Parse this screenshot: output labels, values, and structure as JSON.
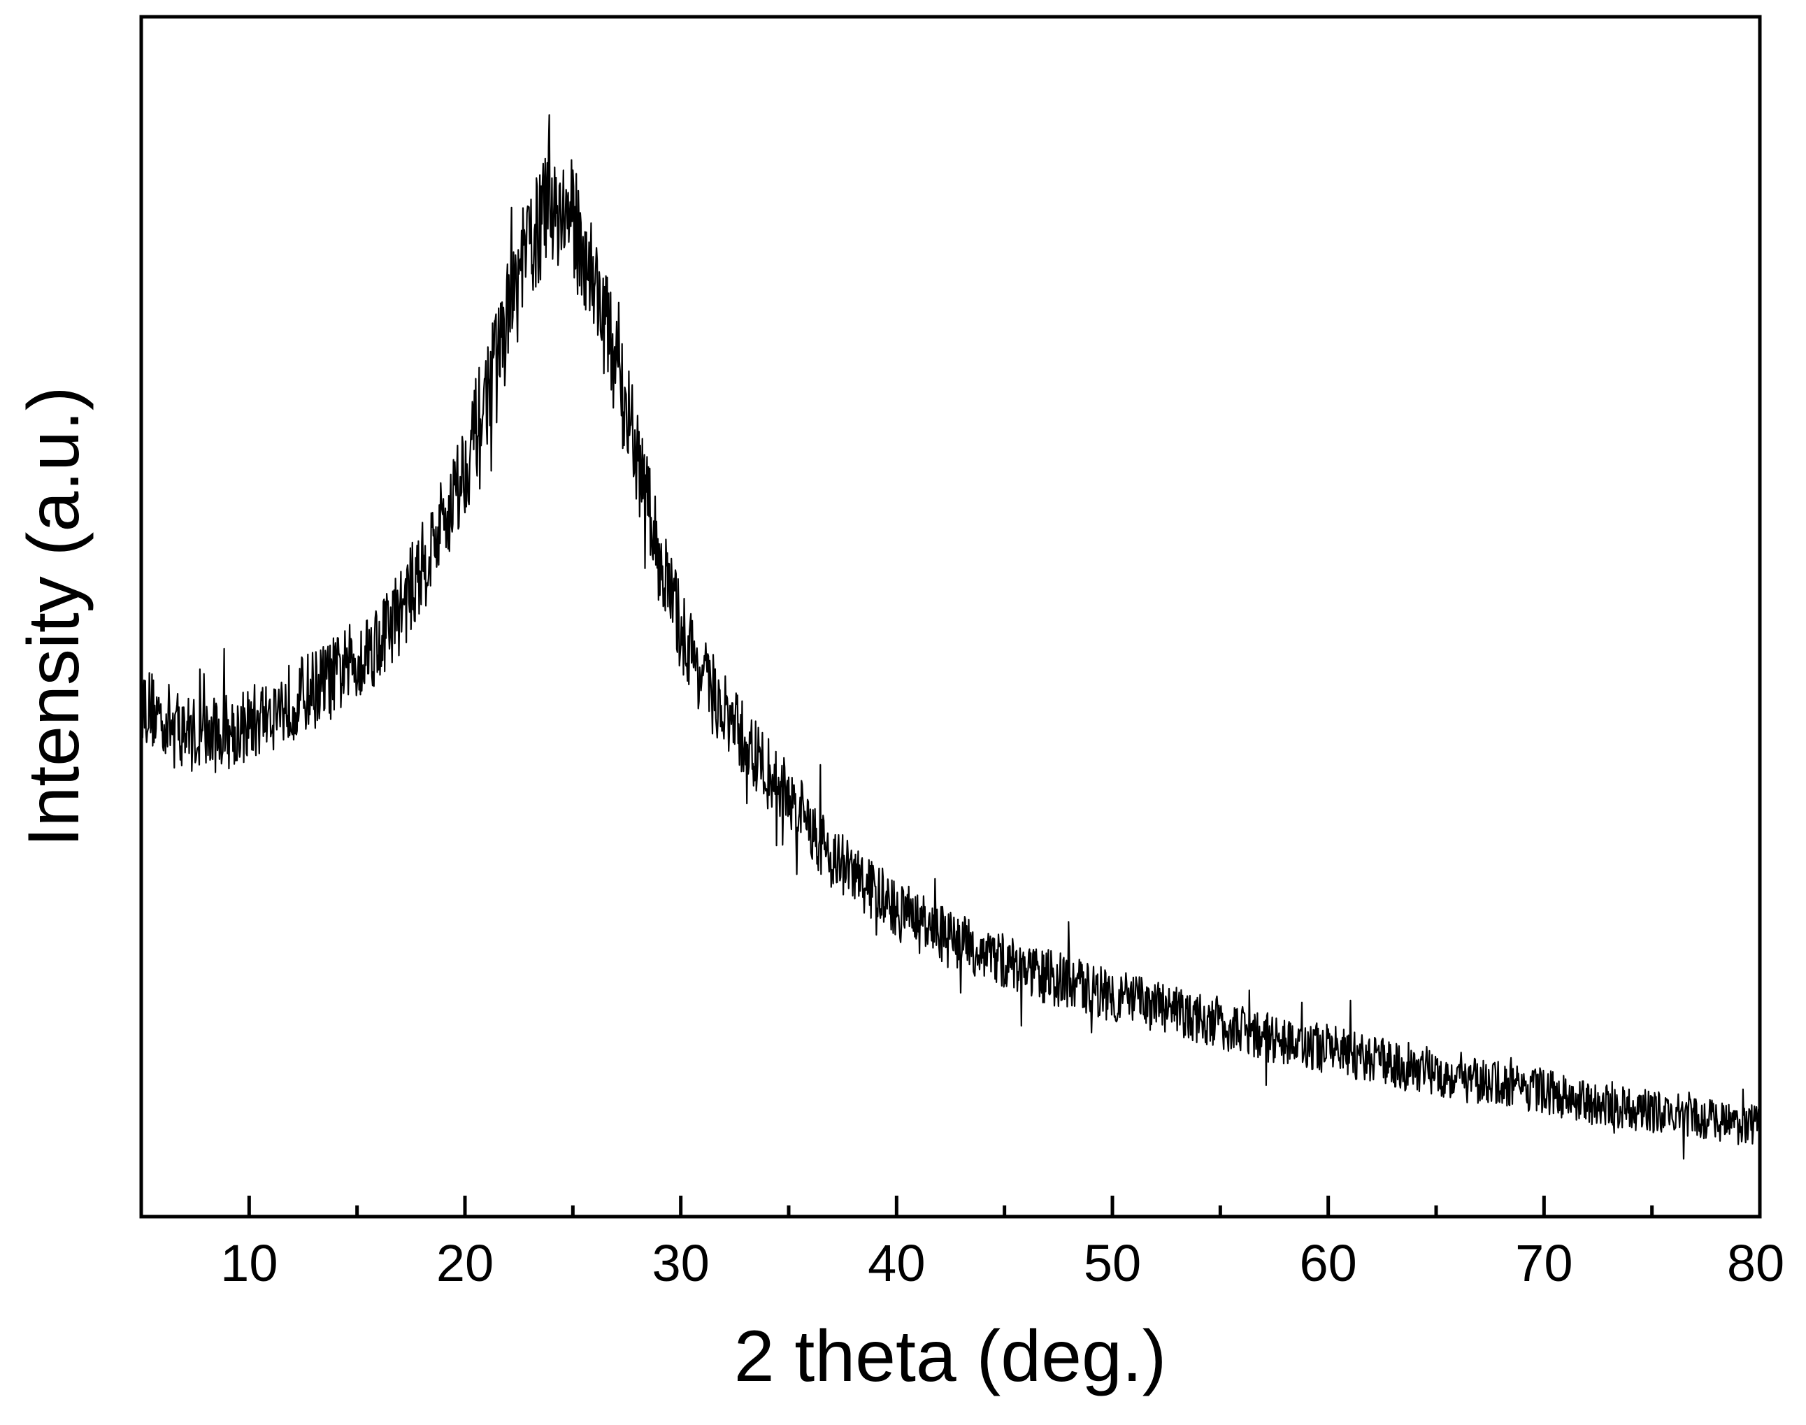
{
  "chart_data": {
    "type": "line",
    "title": "",
    "xlabel": "2 theta (deg.)",
    "ylabel": "Intensity (a.u.)",
    "xlim": [
      5,
      80
    ],
    "ylim": [
      0,
      100
    ],
    "y_tick_labels_shown": false,
    "grid": false,
    "legend": "none",
    "line_color": "#000000",
    "x_ticks": [
      {
        "value": 10,
        "label": "10"
      },
      {
        "value": 20,
        "label": "20"
      },
      {
        "value": 30,
        "label": "30"
      },
      {
        "value": 40,
        "label": "40"
      },
      {
        "value": 50,
        "label": "50"
      },
      {
        "value": 60,
        "label": "60"
      },
      {
        "value": 70,
        "label": "70"
      },
      {
        "value": 80,
        "label": "80"
      }
    ],
    "x_minor_ticks": [
      15,
      25,
      35,
      45,
      55,
      65,
      75
    ],
    "series": [
      {
        "x": [
          5,
          6,
          7,
          8,
          9,
          10,
          11,
          12,
          13,
          14,
          15,
          16,
          17,
          18,
          19,
          20,
          21,
          22,
          23,
          24,
          25,
          26,
          27,
          28,
          29,
          30,
          31,
          32,
          33,
          34,
          35,
          36,
          37,
          38,
          39,
          40,
          42,
          44,
          46,
          48,
          50,
          52,
          54,
          56,
          58,
          60,
          62,
          64,
          66,
          68,
          70,
          72,
          74,
          76,
          78,
          80
        ],
        "values": [
          43,
          41.5,
          40.5,
          40,
          40.5,
          41,
          42,
          43,
          44,
          45,
          46.5,
          48,
          50.5,
          54,
          58,
          62.5,
          68.5,
          75,
          81,
          84.5,
          83,
          78,
          71,
          63,
          55,
          49,
          45,
          42,
          39.5,
          37,
          35,
          32.5,
          30,
          28.5,
          27,
          25.5,
          23.5,
          22,
          20.5,
          19.5,
          18.5,
          17.5,
          16.5,
          15.5,
          14.5,
          14,
          13,
          12.5,
          11.5,
          11,
          10.5,
          9.5,
          9,
          8.5,
          8,
          7.5
        ]
      }
    ]
  }
}
